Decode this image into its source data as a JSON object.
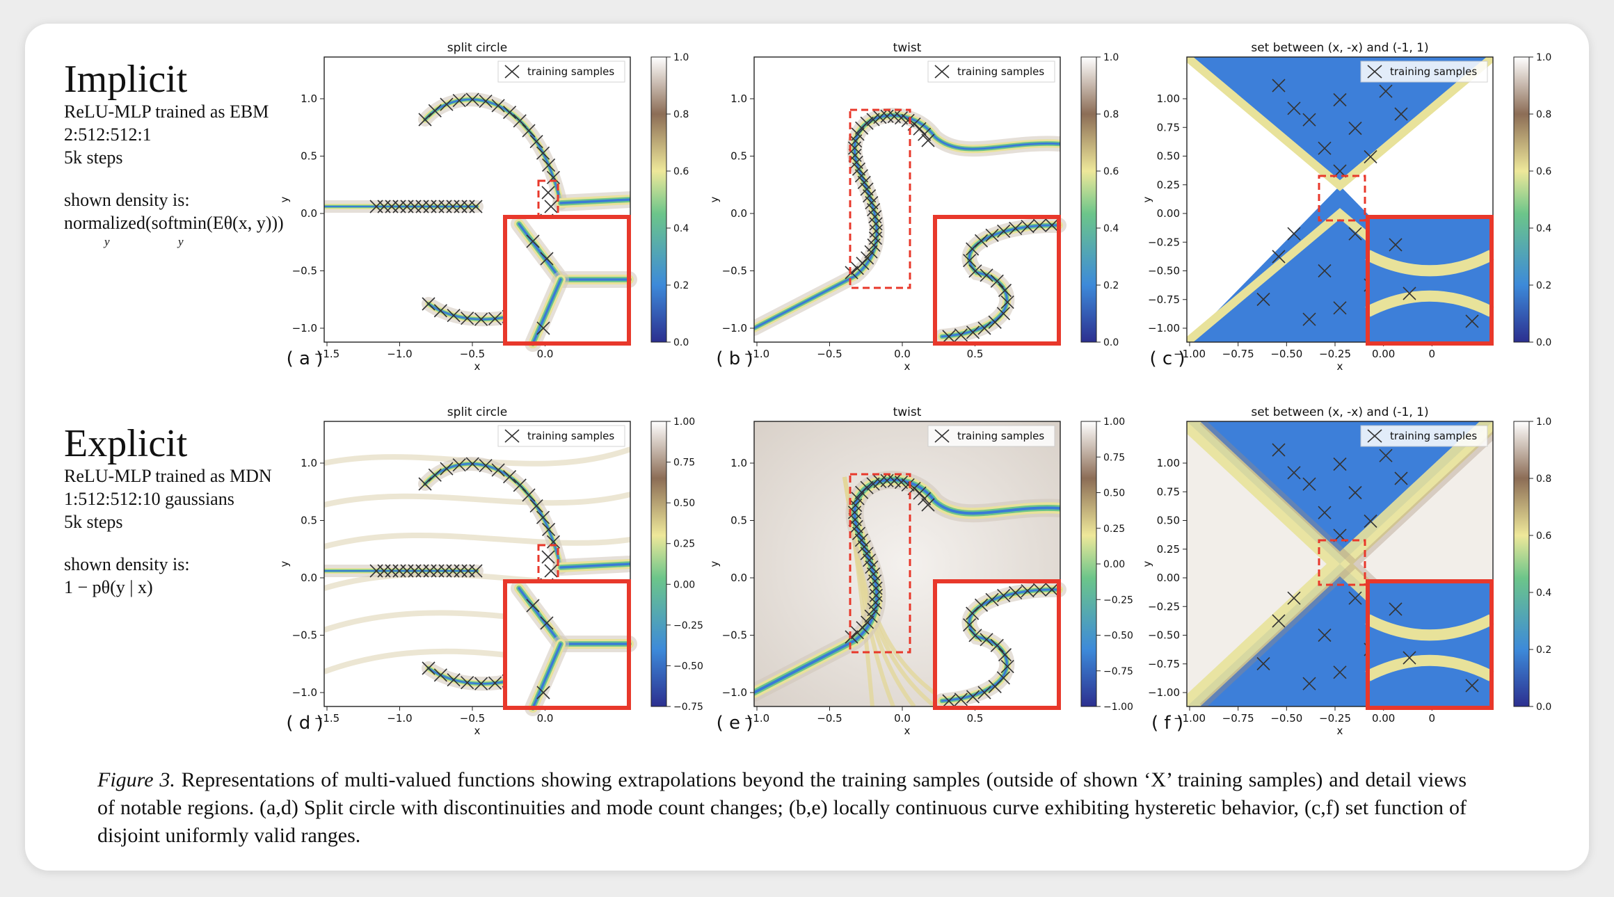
{
  "rows": [
    {
      "heading": "Implicit",
      "lines": [
        "ReLU-MLP trained as EBM",
        "2:512:512:1",
        "5k steps"
      ],
      "shown_label": "shown density is:",
      "formula_main": "normalized(softmin(Eθ(x, y)))",
      "formula_sub_1": "y",
      "formula_sub_2": "y"
    },
    {
      "heading": "Explicit",
      "lines": [
        "ReLU-MLP trained as MDN",
        "1:512:512:10 gaussians",
        "5k steps"
      ],
      "shown_label": "shown density is:",
      "formula_main": "1 − pθ(y | x)"
    }
  ],
  "legend_label": "training samples",
  "panels": [
    {
      "id": "a",
      "label": "( a )",
      "title": "split circle",
      "xlabel": "x",
      "ylabel": "y",
      "xticks": [
        "−1.5",
        "−1.0",
        "−0.5",
        "0.0"
      ],
      "yticks": [
        "1.0",
        "0.5",
        "0.0",
        "−0.5",
        "−1.0"
      ],
      "cbar": [
        "1.0",
        "0.8",
        "0.6",
        "0.4",
        "0.2",
        "0.0"
      ]
    },
    {
      "id": "b",
      "label": "( b )",
      "title": "twist",
      "xlabel": "x",
      "ylabel": "y",
      "xticks": [
        "−1.0",
        "−0.5",
        "0.0",
        "0.5"
      ],
      "yticks": [
        "1.0",
        "0.5",
        "0.0",
        "−0.5",
        "−1.0"
      ],
      "cbar": [
        "1.0",
        "0.8",
        "0.6",
        "0.4",
        "0.2",
        "0.0"
      ]
    },
    {
      "id": "c",
      "label": "( c )",
      "title": "set between (x, -x) and (-1, 1)",
      "xlabel": "x",
      "ylabel": "y",
      "xticks": [
        "−1.00",
        "−0.75",
        "−0.50",
        "−0.25",
        "0.00",
        "0"
      ],
      "yticks": [
        "1.00",
        "0.75",
        "0.50",
        "0.25",
        "0.00",
        "−0.25",
        "−0.50",
        "−0.75",
        "−1.00"
      ],
      "cbar": [
        "1.0",
        "0.8",
        "0.6",
        "0.4",
        "0.2",
        "0.0"
      ]
    },
    {
      "id": "d",
      "label": "( d )",
      "title": "split circle",
      "xlabel": "x",
      "ylabel": "y",
      "xticks": [
        "−1.5",
        "−1.0",
        "−0.5",
        "0.0"
      ],
      "yticks": [
        "1.0",
        "0.5",
        "0.0",
        "−0.5",
        "−1.0"
      ],
      "cbar": [
        "1.00",
        "0.75",
        "0.50",
        "0.25",
        "0.00",
        "−0.25",
        "−0.50",
        "−0.75"
      ]
    },
    {
      "id": "e",
      "label": "( e )",
      "title": "twist",
      "xlabel": "x",
      "ylabel": "y",
      "xticks": [
        "−1.0",
        "−0.5",
        "0.0",
        "0.5"
      ],
      "yticks": [
        "1.0",
        "0.5",
        "0.0",
        "−0.5",
        "−1.0"
      ],
      "cbar": [
        "1.00",
        "0.75",
        "0.50",
        "0.25",
        "0.00",
        "−0.25",
        "−0.50",
        "−0.75",
        "−1.00"
      ]
    },
    {
      "id": "f",
      "label": "( f )",
      "title": "set between (x, -x) and (-1, 1)",
      "xlabel": "x",
      "ylabel": "y",
      "xticks": [
        "−1.00",
        "−0.75",
        "−0.50",
        "−0.25",
        "0.00",
        "0"
      ],
      "yticks": [
        "1.00",
        "0.75",
        "0.50",
        "0.25",
        "0.00",
        "−0.25",
        "−0.50",
        "−0.75",
        "−1.00"
      ],
      "cbar": [
        "1.0",
        "0.8",
        "0.6",
        "0.4",
        "0.2",
        "0.0"
      ]
    }
  ],
  "caption": {
    "label": "Figure 3.",
    "text": " Representations of multi-valued functions showing extrapolations beyond the training samples (outside of shown ‘X’ training samples) and detail views of notable regions.  (a,d) Split circle with discontinuities and mode count changes; (b,e) locally continuous curve exhibiting hysteretic behavior, (c,f) set function of disjoint uniformly valid ranges."
  },
  "colors": {
    "highlight": "#e8382b",
    "curve_core": "#3a7bd5",
    "curve_halo": "#e8e29a",
    "field_blue": "#3d7fd9",
    "field_green": "#6cc58a"
  }
}
